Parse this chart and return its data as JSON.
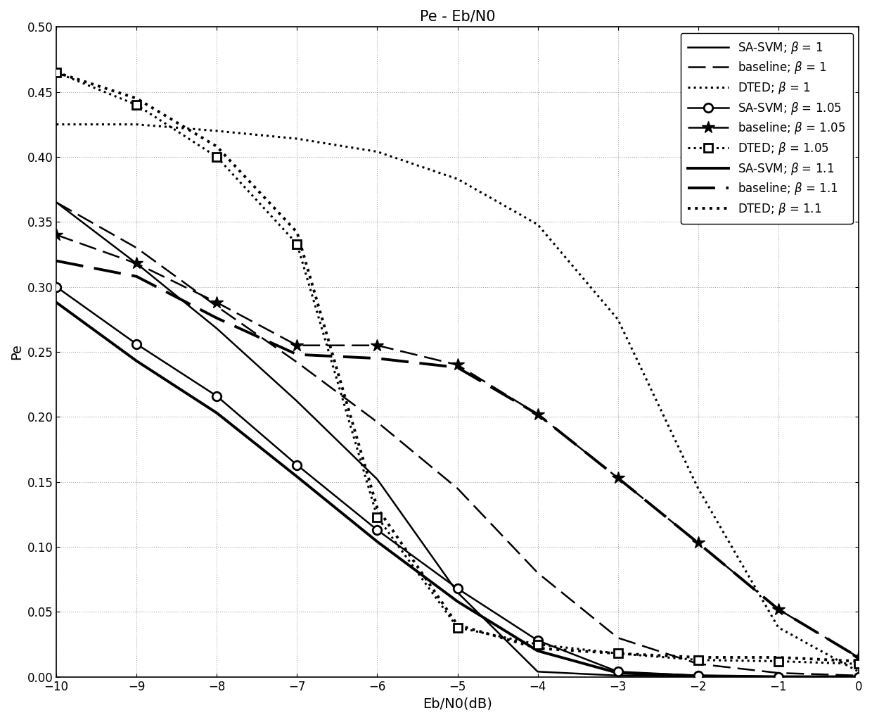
{
  "title": "Pe - Eb/N0",
  "xlabel": "Eb/N0(dB)",
  "ylabel": "Pe",
  "xlim": [
    -10,
    0
  ],
  "ylim": [
    0,
    0.5
  ],
  "xticks": [
    -10,
    -9,
    -8,
    -7,
    -6,
    -5,
    -4,
    -3,
    -2,
    -1,
    0
  ],
  "yticks": [
    0,
    0.05,
    0.1,
    0.15,
    0.2,
    0.25,
    0.3,
    0.35,
    0.4,
    0.45,
    0.5
  ],
  "x": [
    -10,
    -9,
    -8,
    -7,
    -6,
    -5,
    -4,
    -3,
    -2,
    -1,
    0
  ],
  "sasvm_b1": [
    0.365,
    0.318,
    0.268,
    0.212,
    0.152,
    0.065,
    0.004,
    0.001,
    0.0003,
    0.0001,
    0.0001
  ],
  "base_b1": [
    0.365,
    0.33,
    0.285,
    0.242,
    0.196,
    0.145,
    0.08,
    0.03,
    0.01,
    0.003,
    0.001
  ],
  "dted_b1": [
    0.425,
    0.425,
    0.42,
    0.414,
    0.404,
    0.383,
    0.348,
    0.275,
    0.145,
    0.038,
    0.004
  ],
  "sasvm_b105": [
    0.3,
    0.256,
    0.216,
    0.163,
    0.113,
    0.068,
    0.028,
    0.004,
    0.001,
    0.0001,
    0.0001
  ],
  "base_b105": [
    0.34,
    0.318,
    0.288,
    0.255,
    0.255,
    0.24,
    0.202,
    0.153,
    0.103,
    0.052,
    0.015
  ],
  "dted_b105": [
    0.465,
    0.44,
    0.4,
    0.333,
    0.123,
    0.038,
    0.025,
    0.018,
    0.013,
    0.012,
    0.01
  ],
  "sasvm_b11": [
    0.288,
    0.243,
    0.203,
    0.154,
    0.104,
    0.058,
    0.02,
    0.003,
    0.0008,
    0.0001,
    0.0001
  ],
  "base_b11": [
    0.32,
    0.308,
    0.276,
    0.248,
    0.245,
    0.238,
    0.202,
    0.153,
    0.103,
    0.052,
    0.015
  ],
  "dted_b11": [
    0.465,
    0.445,
    0.408,
    0.342,
    0.13,
    0.04,
    0.022,
    0.018,
    0.015,
    0.015,
    0.012
  ],
  "background": "#ffffff",
  "line_color": "#000000",
  "grid_color": "#aaaaaa",
  "title_fontsize": 15,
  "label_fontsize": 14,
  "tick_fontsize": 12,
  "legend_fontsize": 12
}
